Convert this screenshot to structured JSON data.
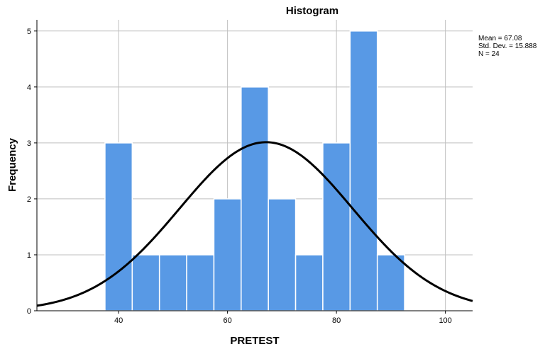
{
  "chart_data": {
    "type": "bar",
    "title": "Histogram",
    "xlabel": "PRETEST",
    "ylabel": "Frequency",
    "xlim": [
      25,
      105
    ],
    "ylim": [
      0,
      5.2
    ],
    "x_ticks": [
      40,
      60,
      80,
      100
    ],
    "y_ticks": [
      0,
      1,
      2,
      3,
      4,
      5
    ],
    "bin_width": 5,
    "bins": [
      {
        "start": 37.5,
        "end": 42.5,
        "count": 3
      },
      {
        "start": 42.5,
        "end": 47.5,
        "count": 1
      },
      {
        "start": 47.5,
        "end": 52.5,
        "count": 1
      },
      {
        "start": 52.5,
        "end": 57.5,
        "count": 1
      },
      {
        "start": 57.5,
        "end": 62.5,
        "count": 2
      },
      {
        "start": 62.5,
        "end": 67.5,
        "count": 4
      },
      {
        "start": 67.5,
        "end": 72.5,
        "count": 2
      },
      {
        "start": 72.5,
        "end": 77.5,
        "count": 1
      },
      {
        "start": 77.5,
        "end": 82.5,
        "count": 3
      },
      {
        "start": 82.5,
        "end": 87.5,
        "count": 5
      },
      {
        "start": 87.5,
        "end": 92.5,
        "count": 1
      }
    ],
    "normal_curve": {
      "mean": 67.08,
      "std": 15.888,
      "n": 24
    },
    "grid": true,
    "bar_color": "#5899e5",
    "bar_edge_color": "#ffffff",
    "curve_color": "#000000",
    "grid_color": "#bfbfbf",
    "stats": {
      "mean_text": "Mean = 67.08",
      "std_text": "Std. Dev. = 15.888",
      "n_text": "N = 24"
    },
    "stats_placement": "top-right"
  }
}
